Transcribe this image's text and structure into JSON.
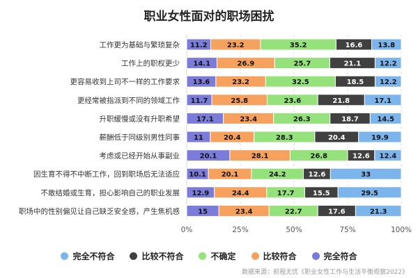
{
  "chart_data": {
    "type": "bar",
    "orientation": "horizontal",
    "stacked": true,
    "title": "职业女性面对的职场困扰",
    "categories": [
      "工作更为基础与繁琐复杂",
      "工作上的职权更少",
      "更容易收到上司不一样的工作要求",
      "更经常被指派到不同的领域工作",
      "升职缓慢或没有升职希望",
      "薪酬低于同级别男性同事",
      "考虑或已经开始从事副业",
      "因生育不得不中断工作，回到职场后无法适应",
      "不敢结婚或生育，担心影响自己的职业发展",
      "职场中的性别偏见让自己缺乏安全感，产生焦机感"
    ],
    "series": [
      {
        "name": "完全符合",
        "color": "#7b7bd9",
        "values": [
          11.2,
          14.1,
          13.6,
          11.7,
          17.1,
          11,
          20.1,
          10.1,
          12.9,
          15
        ]
      },
      {
        "name": "比较符合",
        "color": "#f6a25e",
        "values": [
          23.2,
          26.9,
          23.2,
          25.8,
          23.4,
          20.4,
          28.1,
          20.1,
          24.4,
          23.4
        ]
      },
      {
        "name": "不确定",
        "color": "#95e27c",
        "values": [
          35.2,
          25.7,
          32.5,
          23.6,
          26.3,
          28.3,
          26.8,
          24.2,
          17.7,
          22.7
        ]
      },
      {
        "name": "比较不符合",
        "color": "#404040",
        "values": [
          16.6,
          21.1,
          18.5,
          21.8,
          18.7,
          20.4,
          12.6,
          12.6,
          15.5,
          17.6
        ]
      },
      {
        "name": "完全不符合",
        "color": "#7cb5ec",
        "values": [
          13.8,
          12.2,
          12.2,
          17.1,
          14.5,
          19.9,
          12.4,
          33,
          29.5,
          21.3
        ]
      }
    ],
    "xlim": [
      0,
      100
    ],
    "xticks": [
      "0%",
      "25%",
      "50%",
      "75%",
      "100%"
    ],
    "grid": true,
    "legend_position": "bottom",
    "legend_order": [
      "完全不符合",
      "比较不符合",
      "不确定",
      "比较符合",
      "完全符合"
    ]
  },
  "source": "数据来源：前程无忧《职业女性工作与生活平衡观察2022》"
}
